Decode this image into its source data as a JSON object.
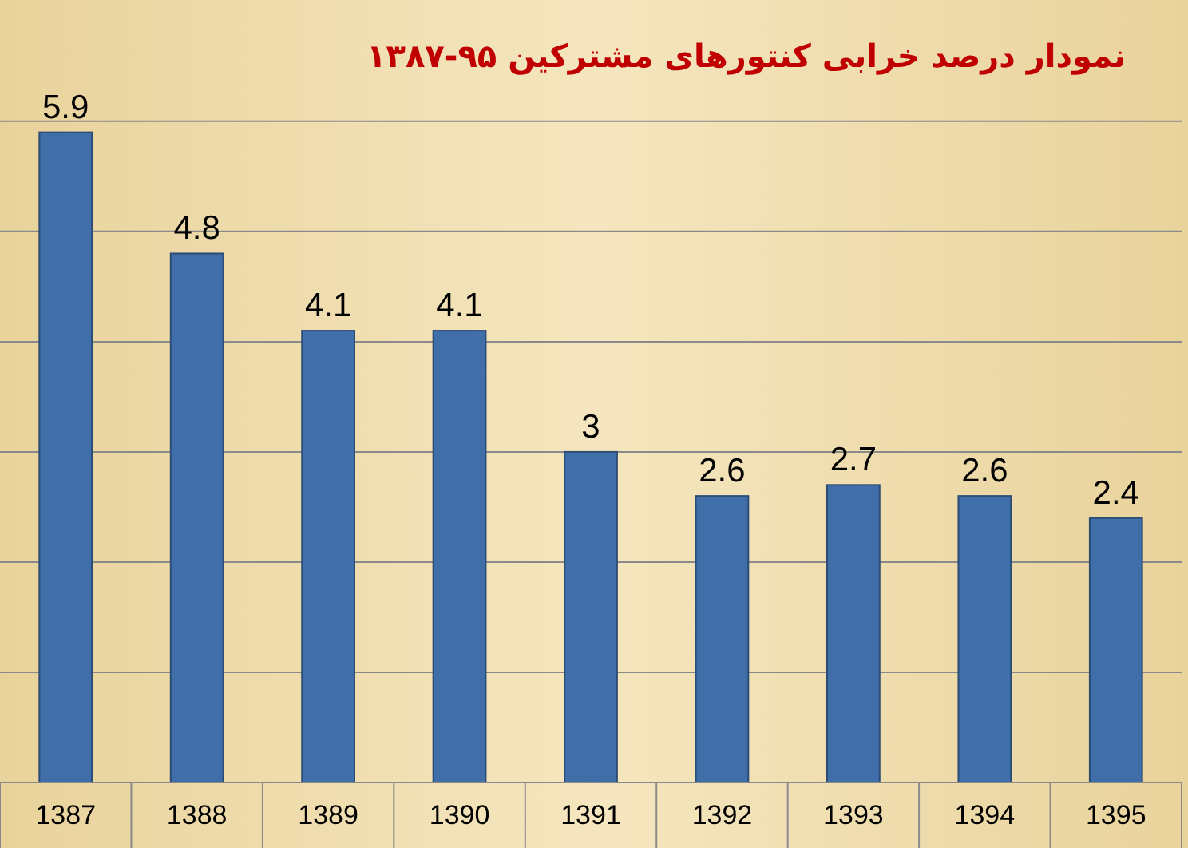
{
  "chart_data": {
    "type": "bar",
    "title": "نمودار درصد خرابی کنتورهای مشترکین ۹۵-۱۳۸۷",
    "categories": [
      "1387",
      "1388",
      "1389",
      "1390",
      "1391",
      "1392",
      "1393",
      "1394",
      "1395"
    ],
    "values": [
      5.9,
      4.8,
      4.1,
      4.1,
      3,
      2.6,
      2.7,
      2.6,
      2.4
    ],
    "color": "#3f6ea8",
    "ylim": [
      0,
      7.1
    ],
    "yticks": [
      {
        "value": 0,
        "label": null
      },
      {
        "value": 1,
        "label": null
      },
      {
        "value": 2,
        "label": null
      },
      {
        "value": 3,
        "label": null
      },
      {
        "value": 4,
        "label": null
      },
      {
        "value": 5,
        "label": null
      },
      {
        "value": 6,
        "label": null
      }
    ],
    "grid": "y",
    "tick_labels": "x",
    "data_labels": true
  }
}
